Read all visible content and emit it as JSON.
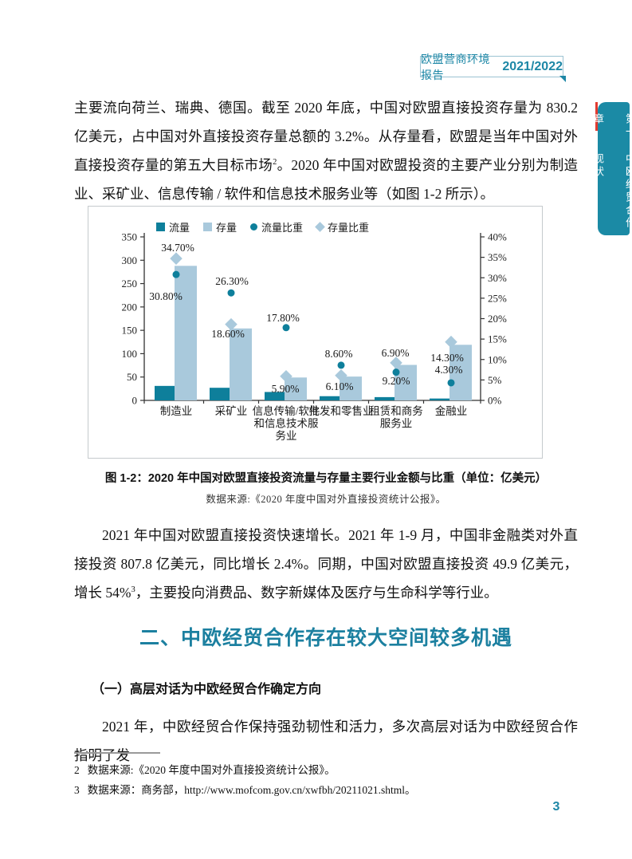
{
  "header_badge": {
    "title": "欧盟营商环境报告",
    "year": "2021/2022"
  },
  "chapter_tab": {
    "chapter": "第一章",
    "title": "中欧经贸合作现状"
  },
  "paragraphs": {
    "p1_a": "主要流向荷兰、瑞典、德国。截至 2020 年底，中国对欧盟直接投资存量为 830.2 亿美元，占中国对外直接投资存量总额的 3.2%。从存量看，欧盟是当年中国对外直接投资存量的第五大目标市场",
    "p1_sup": "2",
    "p1_b": "。2020 年中国对欧盟投资的主要产业分别为制造业、采矿业、信息传输 / 软件和信息技术服务业等（如图 1-2 所示）。",
    "p2_a": "2021 年中国对欧盟直接投资快速增长。2021 年 1-9 月，中国非金融类对外直接投资 807.8 亿美元，同比增长 2.4%。同期，中国对欧盟直接投资 49.9 亿美元，增长 54%",
    "p2_sup": "3",
    "p2_b": "，主要投向消费品、数字新媒体及医疗与生命科学等行业。",
    "p3": "2021 年，中欧经贸合作保持强劲韧性和活力，多次高层对话为中欧经贸合作指明了发"
  },
  "figure": {
    "caption": "图 1-2：2020 年中国对欧盟直接投资流量与存量主要行业金额与比重（单位：亿美元）",
    "source": "数据来源:《2020 年度中国对外直接投资统计公报》。"
  },
  "section": {
    "heading": "二、中欧经贸合作存在较大空间较多机遇",
    "sub_heading": "（一）高层对话为中欧经贸合作确定方向"
  },
  "footnotes": [
    {
      "num": "2",
      "text": "数据来源:《2020 年度中国对外直接投资统计公报》。"
    },
    {
      "num": "3",
      "text": "数据来源：商务部，http://www.mofcom.gov.cn/xwfbh/20211021.shtml。"
    }
  ],
  "page_number": "3",
  "colors": {
    "teal_dark": "#0e7f9b",
    "blue_light": "#a9c9dc",
    "accent_teal": "#1d87a6",
    "heading_teal": "#1c80a0",
    "tab_red": "#e23b30",
    "axis": "#333333"
  },
  "chart_data": {
    "type": "bar",
    "title": "图 1-2：2020 年中国对欧盟直接投资流量与存量主要行业金额与比重（单位：亿美元）",
    "categories": [
      "制造业",
      "采矿业",
      "信息传输/软件\n和信息技术服\n务业",
      "批发和零售业",
      "租赁和商务\n服务业",
      "金融业"
    ],
    "series": [
      {
        "name": "流量",
        "type": "bar",
        "axis": "left",
        "values": [
          31,
          27,
          18,
          9,
          7,
          4
        ]
      },
      {
        "name": "存量",
        "type": "bar",
        "axis": "left",
        "values": [
          288,
          154,
          49,
          51,
          76,
          119
        ]
      },
      {
        "name": "流量比重",
        "type": "point-circle",
        "axis": "right",
        "values": [
          30.8,
          26.3,
          17.8,
          8.6,
          6.9,
          4.3
        ],
        "labels": [
          "30.80%",
          "26.30%",
          "17.80%",
          "8.60%",
          "6.90%",
          "4.30%"
        ]
      },
      {
        "name": "存量比重",
        "type": "point-diamond",
        "axis": "right",
        "values": [
          34.7,
          18.6,
          5.9,
          6.1,
          9.2,
          14.3
        ],
        "labels": [
          "34.70%",
          "18.60%",
          "5.90%",
          "6.10%",
          "9.20%",
          "14.30%"
        ]
      }
    ],
    "left_axis": {
      "min": 0,
      "max": 350,
      "step": 50,
      "ticks": [
        "0",
        "50",
        "100",
        "150",
        "200",
        "250",
        "300",
        "350"
      ]
    },
    "right_axis": {
      "min": 0,
      "max": 40,
      "step": 5,
      "ticks": [
        "0%",
        "5%",
        "10%",
        "15%",
        "20%",
        "25%",
        "30%",
        "35%",
        "40%"
      ]
    },
    "grid": false,
    "legend_position": "top"
  }
}
